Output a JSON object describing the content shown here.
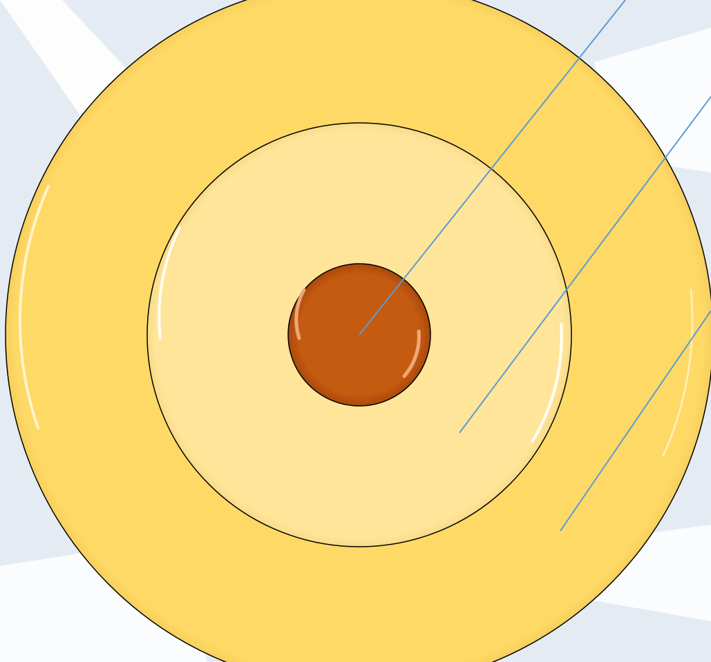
{
  "diagram": {
    "type": "concentric-circles",
    "rings": [
      {
        "name": "outer-ring",
        "color": "#FFD966"
      },
      {
        "name": "middle-ring",
        "color": "#FFE599"
      },
      {
        "name": "core",
        "color": "#C55A11"
      }
    ],
    "outline_color": "#000000",
    "leader_line_color": "#5B9BD5",
    "background": {
      "base_color": "#E4EBF3",
      "stripe_color": "#FFFFFF"
    },
    "labels": []
  }
}
